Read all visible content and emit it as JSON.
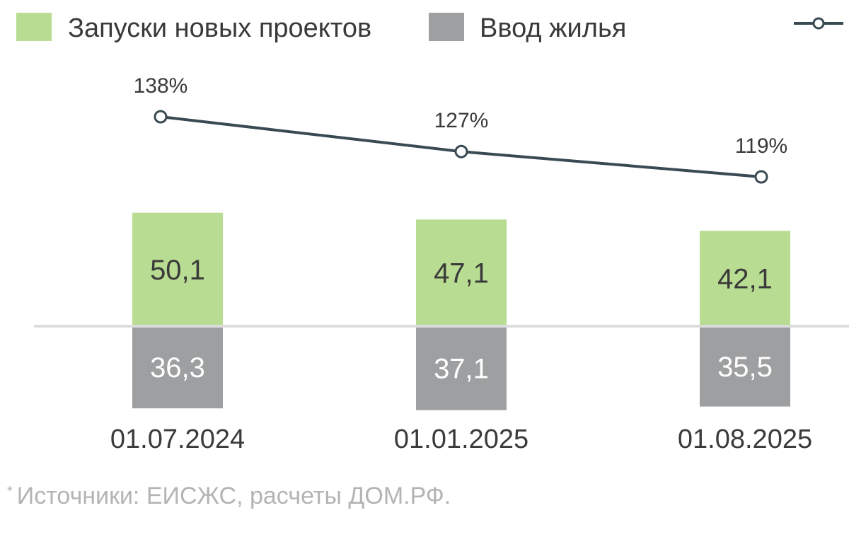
{
  "colors": {
    "launches": "#b8dc91",
    "completions": "#9d9fa0",
    "ratio_line": "#3a4a52",
    "ratio_marker_fill": "#ffffff",
    "baseline": "#dcdcdc",
    "text": "#3a3a3a",
    "text_on_gray": "#ffffff",
    "note": "#b4b4b4"
  },
  "chart_data": {
    "type": "bar",
    "categories": [
      "01.07.2024",
      "01.01.2025",
      "01.08.2025"
    ],
    "series": [
      {
        "name": "Запуски новых проектов",
        "direction": "up",
        "values": [
          50.1,
          47.1,
          42.1
        ],
        "labels": [
          "50,1",
          "47,1",
          "42,1"
        ]
      },
      {
        "name": "Ввод жилья",
        "direction": "down",
        "values": [
          36.3,
          37.1,
          35.5
        ],
        "labels": [
          "36,3",
          "37,1",
          "35,5"
        ]
      },
      {
        "type": "line",
        "values": [
          138,
          127,
          119
        ],
        "labels": [
          "138%",
          "127%",
          "119%"
        ]
      }
    ],
    "legend_position": "top",
    "grid": false
  },
  "note": {
    "marker": "*",
    "text": "Источники: ЕИСЖС, расчеты ДОМ.РФ."
  }
}
